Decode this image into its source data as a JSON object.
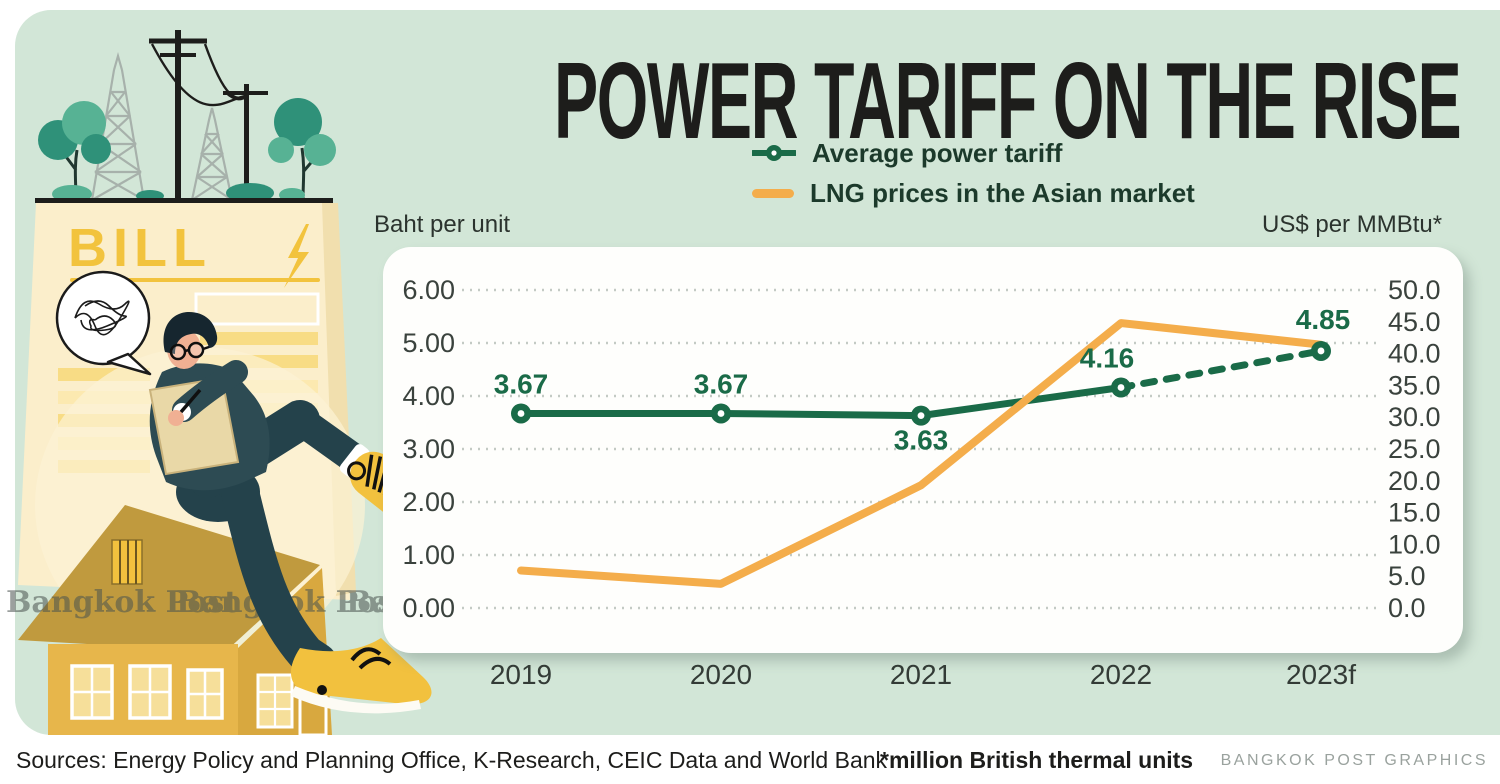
{
  "title": "POWER TARIFF ON THE RISE",
  "legend": {
    "items": [
      {
        "label": "Average power tariff",
        "color": "#1a6b48",
        "marker": "line-dot"
      },
      {
        "label": "LNG prices in the Asian market",
        "color": "#f4ad4b",
        "marker": "dash"
      }
    ]
  },
  "axes": {
    "left_title": "Baht per unit",
    "right_title": "US$ per MMBtu*"
  },
  "chart_data": {
    "type": "line",
    "categories": [
      "2019",
      "2020",
      "2021",
      "2022",
      "2023f"
    ],
    "series": [
      {
        "name": "Average power tariff",
        "axis": "left",
        "color": "#1a6b48",
        "values": [
          3.67,
          3.67,
          3.63,
          4.16,
          4.85
        ],
        "point_labels": [
          "3.67",
          "3.67",
          "3.63",
          "4.16",
          "4.85"
        ],
        "dashed_from_index": 3,
        "markers": true
      },
      {
        "name": "LNG prices in the Asian market",
        "axis": "right",
        "color": "#f4ad4b",
        "values": [
          5.9,
          3.8,
          19.3,
          44.8,
          41.4
        ],
        "markers": false
      }
    ],
    "left_axis": {
      "title": "Baht per unit",
      "min": 0,
      "max": 6,
      "step": 1,
      "decimals": 2
    },
    "right_axis": {
      "title": "US$ per MMBtu*",
      "min": 0,
      "max": 50,
      "step": 5,
      "decimals": 1
    },
    "grid": "dotted-horizontal",
    "legend_position": "top"
  },
  "illustration": {
    "bill_label": "BILL",
    "watermark": "Bangkok Post"
  },
  "footer": {
    "sources": "Sources: Energy Policy and Planning Office, K-Research, CEIC Data and World Bank",
    "footnote": "*million British thermal units",
    "credit": "BANGKOK POST GRAPHICS"
  }
}
